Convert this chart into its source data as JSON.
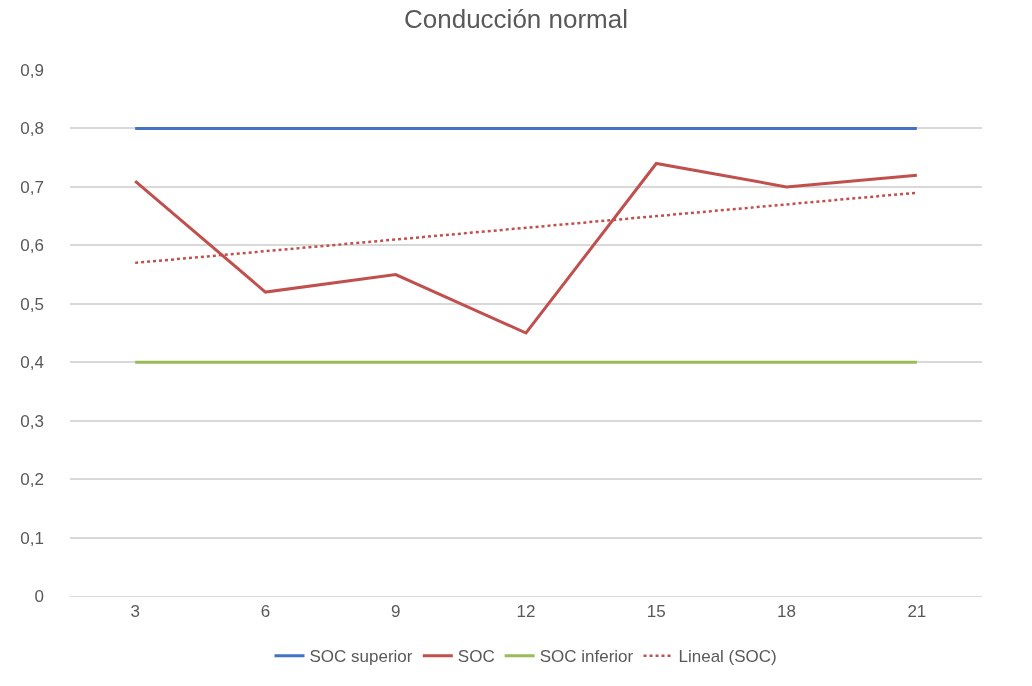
{
  "chart_data": {
    "type": "line",
    "title": "Conducción normal",
    "categories": [
      "3",
      "6",
      "9",
      "12",
      "15",
      "18",
      "21"
    ],
    "series": [
      {
        "name": "SOC superior",
        "color": "#4472c4",
        "values": [
          0.8,
          0.8,
          0.8,
          0.8,
          0.8,
          0.8,
          0.8
        ]
      },
      {
        "name": "SOC",
        "color": "#c0504d",
        "values": [
          0.71,
          0.52,
          0.55,
          0.45,
          0.74,
          0.7,
          0.72
        ]
      },
      {
        "name": "SOC inferior",
        "color": "#9bbb59",
        "values": [
          0.4,
          0.4,
          0.4,
          0.4,
          0.4,
          0.4,
          0.4
        ]
      },
      {
        "name": "Lineal (SOC)",
        "color": "#c0504d",
        "line_style": "dotted",
        "values": [
          0.57,
          0.59,
          0.61,
          0.63,
          0.65,
          0.67,
          0.69
        ]
      }
    ],
    "ylim": [
      0,
      0.9
    ],
    "yticks": [
      0,
      {
        "value": 0.1,
        "label": "0,1"
      },
      {
        "value": 0.2,
        "label": "0,2"
      },
      {
        "value": 0.3,
        "label": "0,3"
      },
      {
        "value": 0.4,
        "label": "0,4"
      },
      {
        "value": 0.5,
        "label": "0,5"
      },
      {
        "value": 0.6,
        "label": "0,6"
      },
      {
        "value": 0.7,
        "label": "0,7"
      },
      {
        "value": 0.8,
        "label": "0,8"
      },
      {
        "value": 0.9,
        "label": "0,9"
      }
    ],
    "grid": "y",
    "legend": "bottom",
    "marker": "none"
  }
}
